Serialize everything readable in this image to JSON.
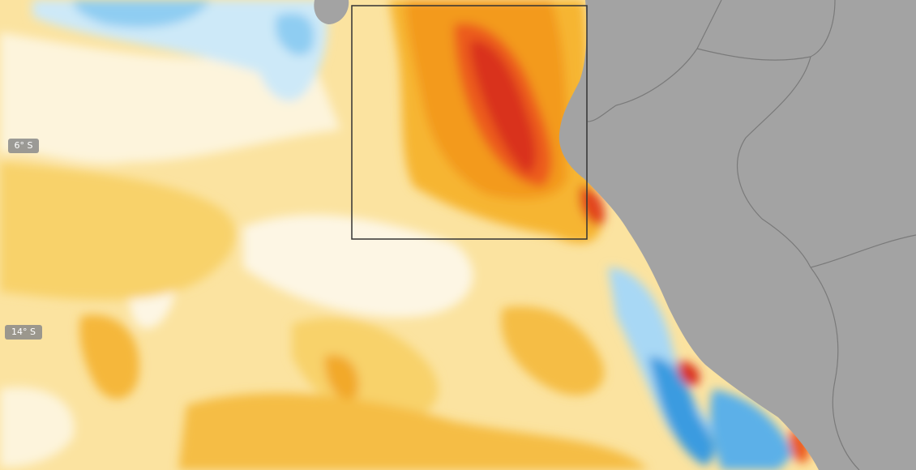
{
  "latitude_labels": [
    "6° S",
    "14° S"
  ]
}
